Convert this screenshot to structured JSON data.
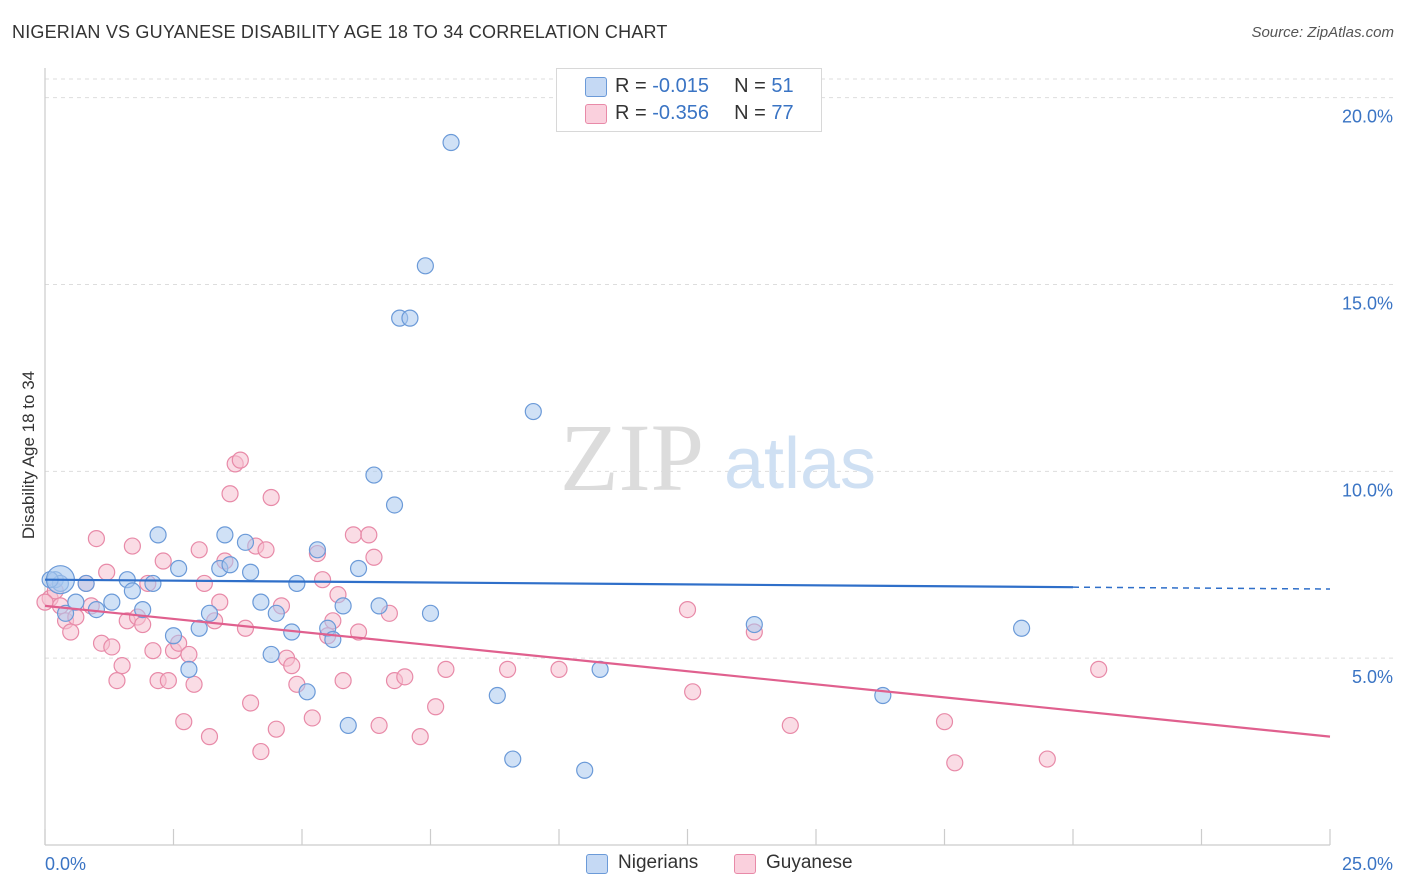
{
  "title": "NIGERIAN VS GUYANESE DISABILITY AGE 18 TO 34 CORRELATION CHART",
  "source": "Source: ZipAtlas.com",
  "watermark": {
    "zip": "ZIP",
    "atlas": "atlas"
  },
  "stats": [
    {
      "r_label": "R =",
      "r_value": "-0.015",
      "n_label": "N =",
      "n_value": "51"
    },
    {
      "r_label": "R =",
      "r_value": "-0.356",
      "n_label": "N =",
      "n_value": "77"
    }
  ],
  "legend": {
    "series1": "Nigerians",
    "series2": "Guyanese"
  },
  "colors": {
    "nigerians_fill": "#a9c8ee",
    "nigerians_stroke": "#6b9ad8",
    "nigerians_line": "#2f6fc9",
    "guyanese_fill": "#f6bfd0",
    "guyanese_stroke": "#e88aa8",
    "guyanese_line": "#e0608e",
    "axis_text": "#3a74c4",
    "grid": "#dddddd"
  },
  "chart_data": {
    "type": "scatter",
    "title": "NIGERIAN VS GUYANESE DISABILITY AGE 18 TO 34 CORRELATION CHART",
    "xlabel": "",
    "ylabel": "Disability Age 18 to 34",
    "xlim": [
      0,
      25
    ],
    "ylim": [
      0,
      20.5
    ],
    "x_tick_labels": [
      "0.0%",
      "25.0%"
    ],
    "y_ticks": [
      5,
      10,
      15,
      20
    ],
    "y_tick_labels": [
      "5.0%",
      "10.0%",
      "15.0%",
      "20.0%"
    ],
    "grid": "horizontal dashed",
    "legend_position": "bottom-center",
    "series": [
      {
        "name": "Nigerians",
        "r": -0.015,
        "n": 51,
        "trend": {
          "x": [
            0,
            20
          ],
          "y": [
            7.1,
            6.9
          ],
          "dashed_extension_to": [
            25,
            6.85
          ]
        },
        "points": [
          [
            0.2,
            7.1
          ],
          [
            0.3,
            7.0
          ],
          [
            0.4,
            6.2
          ],
          [
            0.6,
            6.5
          ],
          [
            0.8,
            7.0
          ],
          [
            1.0,
            6.3
          ],
          [
            1.3,
            6.5
          ],
          [
            1.6,
            7.1
          ],
          [
            1.7,
            6.8
          ],
          [
            1.9,
            6.3
          ],
          [
            2.1,
            7.0
          ],
          [
            2.2,
            8.3
          ],
          [
            2.5,
            5.6
          ],
          [
            2.6,
            7.4
          ],
          [
            2.8,
            4.7
          ],
          [
            3.0,
            5.8
          ],
          [
            3.2,
            6.2
          ],
          [
            3.4,
            7.4
          ],
          [
            3.5,
            8.3
          ],
          [
            3.6,
            7.5
          ],
          [
            3.9,
            8.1
          ],
          [
            4.0,
            7.3
          ],
          [
            4.2,
            6.5
          ],
          [
            4.4,
            5.1
          ],
          [
            4.5,
            6.2
          ],
          [
            4.8,
            5.7
          ],
          [
            4.9,
            7.0
          ],
          [
            5.1,
            4.1
          ],
          [
            5.3,
            7.9
          ],
          [
            5.5,
            5.8
          ],
          [
            5.6,
            5.5
          ],
          [
            5.8,
            6.4
          ],
          [
            5.9,
            3.2
          ],
          [
            6.1,
            7.4
          ],
          [
            6.4,
            9.9
          ],
          [
            6.5,
            6.4
          ],
          [
            6.8,
            9.1
          ],
          [
            6.9,
            14.1
          ],
          [
            7.1,
            14.1
          ],
          [
            7.4,
            15.5
          ],
          [
            7.5,
            6.2
          ],
          [
            7.9,
            18.8
          ],
          [
            8.8,
            4.0
          ],
          [
            9.1,
            2.3
          ],
          [
            9.5,
            11.6
          ],
          [
            10.5,
            2.0
          ],
          [
            10.8,
            4.7
          ],
          [
            13.8,
            5.9
          ],
          [
            16.3,
            4.0
          ],
          [
            19.0,
            5.8
          ],
          [
            0.1,
            7.1
          ]
        ]
      },
      {
        "name": "Guyanese",
        "r": -0.356,
        "n": 77,
        "trend": {
          "x": [
            0,
            25
          ],
          "y": [
            6.4,
            2.9
          ]
        },
        "points": [
          [
            0.1,
            6.6
          ],
          [
            0.2,
            6.8
          ],
          [
            0.3,
            6.4
          ],
          [
            0.4,
            6.0
          ],
          [
            0.5,
            5.7
          ],
          [
            0.6,
            6.1
          ],
          [
            0.8,
            7.0
          ],
          [
            0.9,
            6.4
          ],
          [
            1.0,
            8.2
          ],
          [
            1.1,
            5.4
          ],
          [
            1.2,
            7.3
          ],
          [
            1.3,
            5.3
          ],
          [
            1.4,
            4.4
          ],
          [
            1.5,
            4.8
          ],
          [
            1.6,
            6.0
          ],
          [
            1.7,
            8.0
          ],
          [
            1.8,
            6.1
          ],
          [
            1.9,
            5.9
          ],
          [
            2.0,
            7.0
          ],
          [
            2.1,
            5.2
          ],
          [
            2.2,
            4.4
          ],
          [
            2.3,
            7.6
          ],
          [
            2.4,
            4.4
          ],
          [
            2.5,
            5.2
          ],
          [
            2.6,
            5.4
          ],
          [
            2.7,
            3.3
          ],
          [
            2.8,
            5.1
          ],
          [
            2.9,
            4.3
          ],
          [
            3.0,
            7.9
          ],
          [
            3.1,
            7.0
          ],
          [
            3.2,
            2.9
          ],
          [
            3.3,
            6.0
          ],
          [
            3.4,
            6.5
          ],
          [
            3.5,
            7.6
          ],
          [
            3.6,
            9.4
          ],
          [
            3.7,
            10.2
          ],
          [
            3.8,
            10.3
          ],
          [
            3.9,
            5.8
          ],
          [
            4.0,
            3.8
          ],
          [
            4.1,
            8.0
          ],
          [
            4.2,
            2.5
          ],
          [
            4.3,
            7.9
          ],
          [
            4.4,
            9.3
          ],
          [
            4.5,
            3.1
          ],
          [
            4.6,
            6.4
          ],
          [
            4.7,
            5.0
          ],
          [
            4.8,
            4.8
          ],
          [
            4.9,
            4.3
          ],
          [
            5.2,
            3.4
          ],
          [
            5.3,
            7.8
          ],
          [
            5.4,
            7.1
          ],
          [
            5.5,
            5.6
          ],
          [
            5.6,
            6.0
          ],
          [
            5.7,
            6.7
          ],
          [
            5.8,
            4.4
          ],
          [
            6.0,
            8.3
          ],
          [
            6.1,
            5.7
          ],
          [
            6.3,
            8.3
          ],
          [
            6.4,
            7.7
          ],
          [
            6.5,
            3.2
          ],
          [
            6.7,
            6.2
          ],
          [
            6.8,
            4.4
          ],
          [
            7.0,
            4.5
          ],
          [
            7.3,
            2.9
          ],
          [
            7.6,
            3.7
          ],
          [
            7.8,
            4.7
          ],
          [
            9.0,
            4.7
          ],
          [
            10.0,
            4.7
          ],
          [
            12.5,
            6.3
          ],
          [
            12.6,
            4.1
          ],
          [
            13.8,
            5.7
          ],
          [
            14.5,
            3.2
          ],
          [
            17.5,
            3.3
          ],
          [
            17.7,
            2.2
          ],
          [
            19.5,
            2.3
          ],
          [
            20.5,
            4.7
          ],
          [
            0.0,
            6.5
          ]
        ]
      }
    ]
  }
}
